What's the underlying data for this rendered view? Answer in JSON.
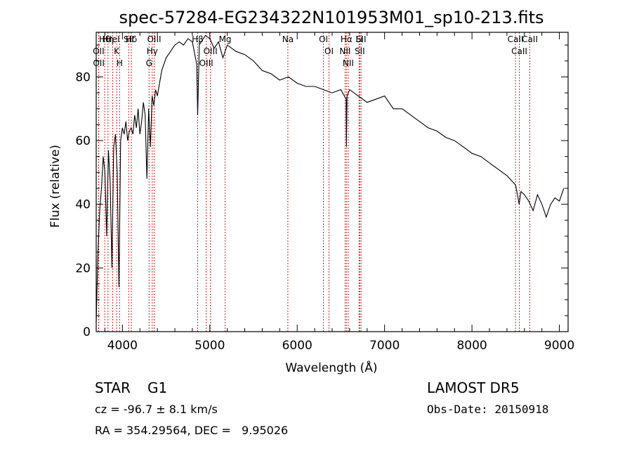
{
  "chart_data": {
    "type": "line",
    "title": "spec-57284-EG234322N101953M01_sp10-213.fits",
    "xlabel": "Wavelength (Å)",
    "ylabel": "Flux (relative)",
    "xlim": [
      3700,
      9100
    ],
    "ylim": [
      0,
      94
    ],
    "xticks": [
      4000,
      5000,
      6000,
      7000,
      8000,
      9000
    ],
    "yticks": [
      0,
      20,
      40,
      60,
      80
    ],
    "grid": false,
    "line_color": "#000000",
    "marker_color": "#cc2222",
    "series": [
      {
        "x": [
          3700,
          3720,
          3740,
          3760,
          3780,
          3800,
          3820,
          3840,
          3860,
          3880,
          3900,
          3920,
          3940,
          3960,
          3980,
          4000,
          4020,
          4040,
          4060,
          4080,
          4100,
          4120,
          4140,
          4160,
          4180,
          4200,
          4220,
          4240,
          4260,
          4280,
          4300,
          4320,
          4340,
          4360,
          4380,
          4400,
          4450,
          4500,
          4550,
          4600,
          4650,
          4700,
          4750,
          4800,
          4850,
          4861,
          4880,
          4900,
          4950,
          5000,
          5050,
          5100,
          5150,
          5200,
          5300,
          5400,
          5500,
          5600,
          5700,
          5800,
          5900,
          6000,
          6100,
          6200,
          6300,
          6400,
          6500,
          6560,
          6563,
          6570,
          6600,
          6700,
          6800,
          6900,
          7000,
          7100,
          7200,
          7300,
          7400,
          7500,
          7600,
          7700,
          7800,
          7900,
          8000,
          8100,
          8200,
          8300,
          8400,
          8500,
          8540,
          8560,
          8600,
          8650,
          8700,
          8750,
          8800,
          8850,
          8900,
          8950,
          9000,
          9050
        ],
        "y": [
          3,
          25,
          38,
          45,
          55,
          50,
          30,
          57,
          47,
          20,
          58,
          62,
          50,
          14,
          60,
          64,
          62,
          66,
          60,
          63,
          64,
          62,
          68,
          64,
          70,
          62,
          66,
          72,
          68,
          48,
          70,
          58,
          74,
          71,
          76,
          74,
          82,
          86,
          88,
          90,
          91,
          90,
          92,
          91,
          84,
          68,
          90,
          91,
          93,
          92,
          89,
          91,
          86,
          90,
          88,
          87,
          85,
          82,
          81,
          79,
          80,
          78,
          77,
          77,
          76,
          75,
          76,
          73,
          58,
          74,
          76,
          74,
          72,
          73,
          74,
          70,
          70,
          68,
          66,
          64,
          63,
          61,
          60,
          58,
          56,
          55,
          53,
          51,
          49,
          46,
          40,
          44,
          43,
          41,
          38,
          43,
          40,
          36,
          40,
          42,
          41,
          45
        ]
      }
    ],
    "lines": [
      {
        "label": "Hθ",
        "x": 3798
      },
      {
        "label": "OII",
        "x": 3727
      },
      {
        "label": "OII",
        "x": 3729
      },
      {
        "label": "Hη",
        "x": 3835
      },
      {
        "label": "K",
        "x": 3934
      },
      {
        "label": "HeI",
        "x": 3889
      },
      {
        "label": "H",
        "x": 3968
      },
      {
        "label": "Hδ",
        "x": 4102
      },
      {
        "label": "SII",
        "x": 4072
      },
      {
        "label": "OIII",
        "x": 4363
      },
      {
        "label": "Hγ",
        "x": 4341
      },
      {
        "label": "G",
        "x": 4305
      },
      {
        "label": "Hβ",
        "x": 4861
      },
      {
        "label": "OIII",
        "x": 5007
      },
      {
        "label": "OIII",
        "x": 4959
      },
      {
        "label": "Mg",
        "x": 5175
      },
      {
        "label": "Na",
        "x": 5893
      },
      {
        "label": "OI",
        "x": 6300
      },
      {
        "label": "OI",
        "x": 6364
      },
      {
        "label": "Hα",
        "x": 6563
      },
      {
        "label": "NII",
        "x": 6548
      },
      {
        "label": "NII",
        "x": 6584
      },
      {
        "label": "SII",
        "x": 6716
      },
      {
        "label": "Li",
        "x": 6708
      },
      {
        "label": "SII",
        "x": 6731
      },
      {
        "label": "CaII",
        "x": 8498
      },
      {
        "label": "CaII",
        "x": 8542
      },
      {
        "label": "CaII",
        "x": 8662
      }
    ]
  },
  "info": {
    "class_label": "STAR",
    "subclass": "G1",
    "survey": "LAMOST DR5",
    "velocity": "cz = -96.7 ± 8.1 km/s",
    "obs_date": "Obs-Date: 20150918",
    "coords": "RA = 354.29564, DEC =   9.95026"
  }
}
